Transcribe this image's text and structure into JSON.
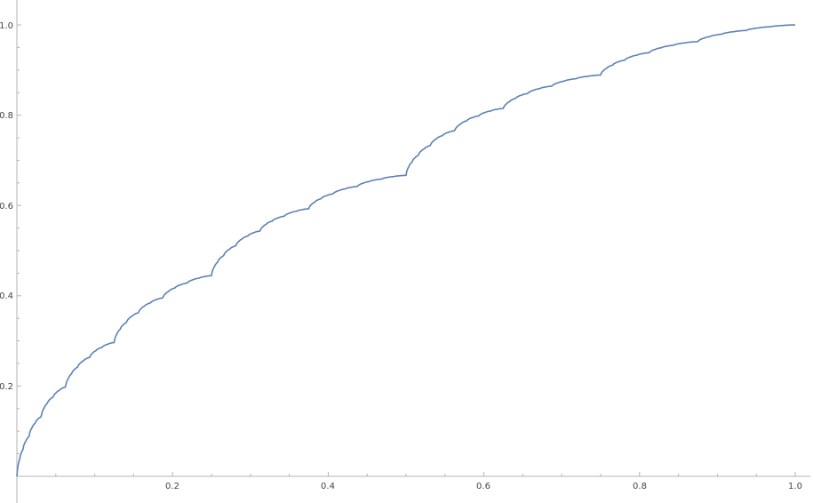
{
  "chart_data": {
    "type": "line",
    "title": "",
    "xlabel": "",
    "ylabel": "",
    "xlim": [
      0,
      1
    ],
    "ylim": [
      0,
      1
    ],
    "grid": false,
    "x_ticks": [
      "0.2",
      "0.4",
      "0.6",
      "0.8",
      "1.0"
    ],
    "y_ticks": [
      "0.2",
      "0.4",
      "0.6",
      "0.8",
      "1.0"
    ],
    "line_color": "#5E81B5",
    "series": [
      {
        "x": [
          0,
          0.0625,
          0.125,
          0.1875,
          0.25,
          0.3125,
          0.375,
          0.4375,
          0.5,
          0.5625,
          0.625,
          0.6875,
          0.75,
          0.8125,
          0.875,
          0.9375,
          1
        ],
        "y": [
          0,
          0.1975,
          0.2963,
          0.3951,
          0.4444,
          0.5432,
          0.5926,
          0.642,
          0.6667,
          0.7654,
          0.8148,
          0.8642,
          0.8889,
          0.9383,
          0.963,
          0.9877,
          1
        ]
      }
    ]
  }
}
